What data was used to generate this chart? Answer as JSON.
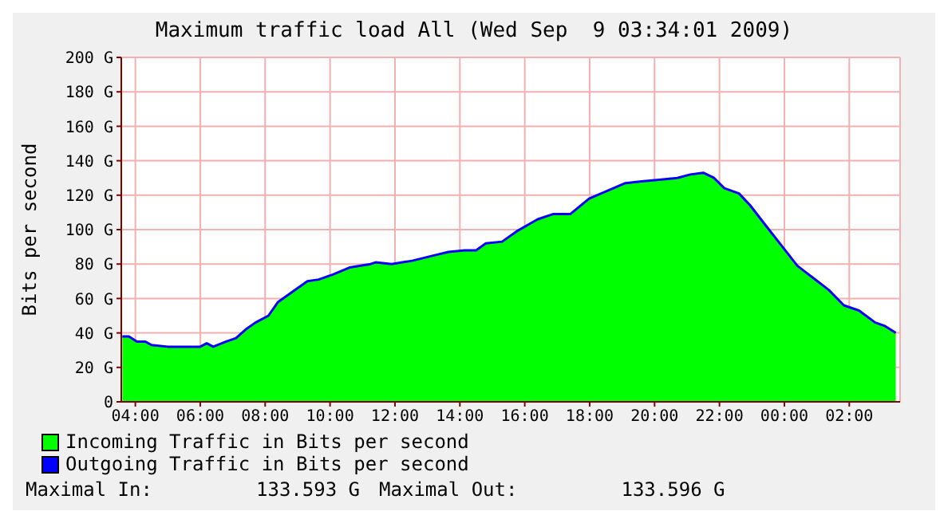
{
  "chart_data": {
    "type": "area",
    "title": "Maximum traffic load All (Wed Sep  9 03:34:01 2009)",
    "ylabel": "Bits per second",
    "x": [
      "2009-09-08T03:36",
      "2009-09-08T03:48",
      "2009-09-08T04:03",
      "2009-09-08T04:18",
      "2009-09-08T04:30",
      "2009-09-08T05:00",
      "2009-09-08T05:18",
      "2009-09-08T06:00",
      "2009-09-08T06:12",
      "2009-09-08T06:24",
      "2009-09-08T06:48",
      "2009-09-08T07:06",
      "2009-09-08T07:24",
      "2009-09-08T07:42",
      "2009-09-08T08:06",
      "2009-09-08T08:24",
      "2009-09-08T08:51",
      "2009-09-08T09:18",
      "2009-09-08T09:39",
      "2009-09-08T10:06",
      "2009-09-08T10:36",
      "2009-09-08T11:15",
      "2009-09-08T11:24",
      "2009-09-08T11:54",
      "2009-09-08T12:33",
      "2009-09-08T13:12",
      "2009-09-08T13:39",
      "2009-09-08T14:09",
      "2009-09-08T14:30",
      "2009-09-08T14:48",
      "2009-09-08T15:18",
      "2009-09-08T15:45",
      "2009-09-08T16:24",
      "2009-09-08T16:52",
      "2009-09-08T17:24",
      "2009-09-08T17:59",
      "2009-09-08T18:36",
      "2009-09-08T19:06",
      "2009-09-08T19:36",
      "2009-09-08T20:12",
      "2009-09-08T20:42",
      "2009-09-08T21:06",
      "2009-09-08T21:30",
      "2009-09-08T21:50",
      "2009-09-08T22:09",
      "2009-09-08T22:36",
      "2009-09-08T22:57",
      "2009-09-08T23:24",
      "2009-09-08T23:54",
      "2009-09-09T00:24",
      "2009-09-09T00:53",
      "2009-09-09T01:22",
      "2009-09-09T01:50",
      "2009-09-09T02:18",
      "2009-09-09T02:48",
      "2009-09-09T03:06",
      "2009-09-09T03:26"
    ],
    "series": [
      {
        "name": "Incoming Traffic in Bits per second",
        "color": "#00ff00",
        "values": [
          38,
          38,
          35,
          35,
          33,
          32,
          32,
          32,
          34,
          32,
          35,
          37,
          42,
          46,
          50,
          58,
          64,
          70,
          71,
          74,
          78,
          80,
          81,
          80,
          82,
          85,
          87,
          88,
          88,
          92,
          93,
          99,
          106,
          109,
          109,
          118,
          123,
          127,
          128,
          129,
          130,
          132,
          133,
          130,
          124,
          121,
          114,
          103,
          91,
          79,
          72,
          65,
          56,
          53,
          46,
          44,
          40
        ]
      },
      {
        "name": "Outgoing Traffic in Bits per second",
        "type": "line",
        "color": "#0000ff",
        "values": [
          38,
          38,
          35,
          35,
          33,
          32,
          32,
          32,
          34,
          32,
          35,
          37,
          42,
          46,
          50,
          58,
          64,
          70,
          71,
          74,
          78,
          80,
          81,
          80,
          82,
          85,
          87,
          88,
          88,
          92,
          93,
          99,
          106,
          109,
          109,
          118,
          123,
          127,
          128,
          129,
          130,
          132,
          133,
          130,
          124,
          121,
          114,
          103,
          91,
          79,
          72,
          65,
          56,
          53,
          46,
          44,
          40
        ]
      }
    ],
    "xlim": [
      "2009-09-08T03:34",
      "2009-09-09T03:34"
    ],
    "xticks": [
      {
        "value": "2009-09-08T04:00",
        "label": "04:00"
      },
      {
        "value": "2009-09-08T06:00",
        "label": "06:00"
      },
      {
        "value": "2009-09-08T08:00",
        "label": "08:00"
      },
      {
        "value": "2009-09-08T10:00",
        "label": "10:00"
      },
      {
        "value": "2009-09-08T12:00",
        "label": "12:00"
      },
      {
        "value": "2009-09-08T14:00",
        "label": "14:00"
      },
      {
        "value": "2009-09-08T16:00",
        "label": "16:00"
      },
      {
        "value": "2009-09-08T18:00",
        "label": "18:00"
      },
      {
        "value": "2009-09-08T20:00",
        "label": "20:00"
      },
      {
        "value": "2009-09-08T22:00",
        "label": "22:00"
      },
      {
        "value": "2009-09-09T00:00",
        "label": "00:00"
      },
      {
        "value": "2009-09-09T02:00",
        "label": "02:00"
      }
    ],
    "ylim": [
      0,
      200
    ],
    "yticks": [
      {
        "value": 0,
        "label": "0"
      },
      {
        "value": 20,
        "label": "20 G"
      },
      {
        "value": 40,
        "label": "40 G"
      },
      {
        "value": 60,
        "label": "60 G"
      },
      {
        "value": 80,
        "label": "80 G"
      },
      {
        "value": 100,
        "label": "100 G"
      },
      {
        "value": 120,
        "label": "120 G"
      },
      {
        "value": 140,
        "label": "140 G"
      },
      {
        "value": 160,
        "label": "160 G"
      },
      {
        "value": 180,
        "label": "180 G"
      },
      {
        "value": 200,
        "label": "200 G"
      }
    ],
    "grid": true,
    "legend": "bottom",
    "marker": "none",
    "line_style": "solid",
    "annotations": [
      "Maximal In:         133.593 G",
      "Maximal Out:         133.596 G"
    ]
  }
}
